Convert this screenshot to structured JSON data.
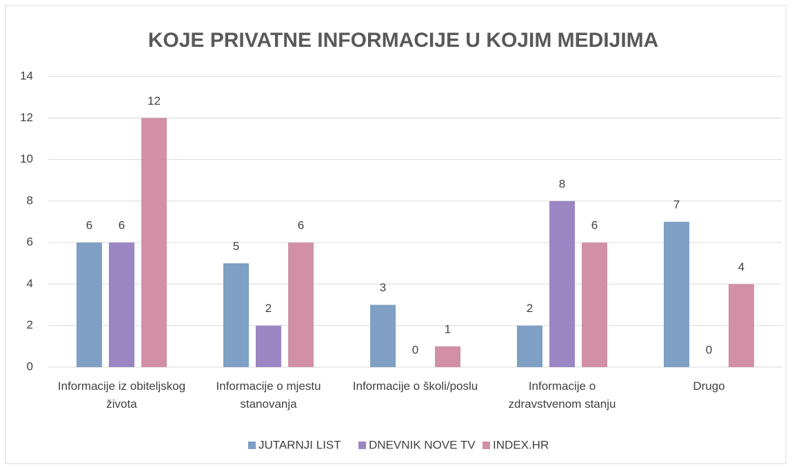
{
  "chart_data": {
    "type": "bar",
    "title": "KOJE PRIVATNE INFORMACIJE U KOJIM MEDIJIMA",
    "categories": [
      "Informacije iz obiteljskog života",
      "Informacije o mjestu stanovanja",
      "Informacije o školi/poslu",
      "Informacije o zdravstvenom stanju",
      "Drugo"
    ],
    "series": [
      {
        "name": "JUTARNJI LIST",
        "color": "#7f9fc4",
        "values": [
          6,
          5,
          3,
          2,
          7
        ]
      },
      {
        "name": "DNEVNIK NOVE TV",
        "color": "#9b86c4",
        "values": [
          6,
          2,
          0,
          8,
          0
        ]
      },
      {
        "name": "INDEX.HR",
        "color": "#d190a6",
        "values": [
          12,
          6,
          1,
          6,
          4
        ]
      }
    ],
    "ylim": [
      0,
      14
    ],
    "yticks": [
      0,
      2,
      4,
      6,
      8,
      10,
      12,
      14
    ],
    "grid": true,
    "legend": "bottom"
  }
}
